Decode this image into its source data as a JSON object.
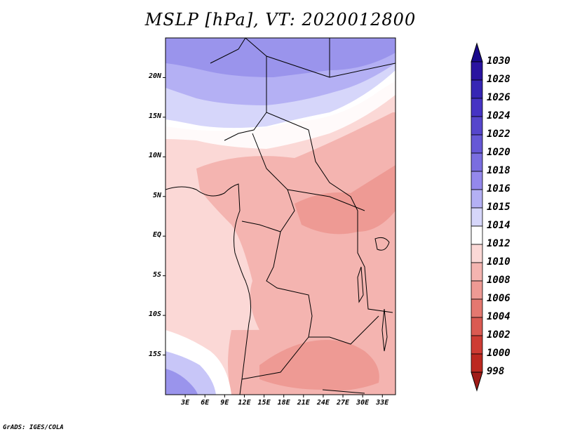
{
  "title": "MSLP [hPa], VT: 2020012800",
  "credit": "GrADS: IGES/COLA",
  "map": {
    "lat_labels": [
      "20N",
      "15N",
      "10N",
      "5N",
      "EQ",
      "5S",
      "10S",
      "15S"
    ],
    "lat_values": [
      20,
      15,
      10,
      5,
      0,
      -5,
      -10,
      -15
    ],
    "lon_labels": [
      "3E",
      "6E",
      "9E",
      "12E",
      "15E",
      "18E",
      "21E",
      "24E",
      "27E",
      "30E",
      "33E"
    ],
    "lon_values": [
      3,
      6,
      9,
      12,
      15,
      18,
      21,
      24,
      27,
      30,
      33
    ],
    "lon_range": [
      0,
      35
    ],
    "lat_range": [
      -20,
      25
    ]
  },
  "colorbar": {
    "levels": [
      "1030",
      "1028",
      "1026",
      "1024",
      "1022",
      "1020",
      "1018",
      "1016",
      "1015",
      "1014",
      "1012",
      "1010",
      "1008",
      "1006",
      "1004",
      "1002",
      "1000",
      "998"
    ],
    "colors": [
      "#2a14a0",
      "#3626b4",
      "#4634c4",
      "#5646cc",
      "#6658d6",
      "#7a6ee0",
      "#9488ec",
      "#b4b0f4",
      "#d6d6fa",
      "#ffffff",
      "#fbd8d6",
      "#f4b4b0",
      "#ee9a94",
      "#e47870",
      "#da5a52",
      "#ce3c34",
      "#bc2820",
      "#a81c18"
    ],
    "top_color": "#1a0a8c",
    "bottom_color": "#a01c18"
  },
  "regions": [
    {
      "name": "north-high",
      "color": "#9a94ec"
    },
    {
      "name": "north-mid",
      "color": "#b4b0f4"
    },
    {
      "name": "band-1016",
      "color": "#d6d6fa"
    },
    {
      "name": "band-1015",
      "color": "#ffffff"
    },
    {
      "name": "band-1012",
      "color": "#fbd8d6"
    },
    {
      "name": "band-1010",
      "color": "#f4b4b0"
    },
    {
      "name": "band-1008",
      "color": "#ee9a94"
    },
    {
      "name": "southwest-high",
      "color": "#c8c6f8"
    }
  ]
}
